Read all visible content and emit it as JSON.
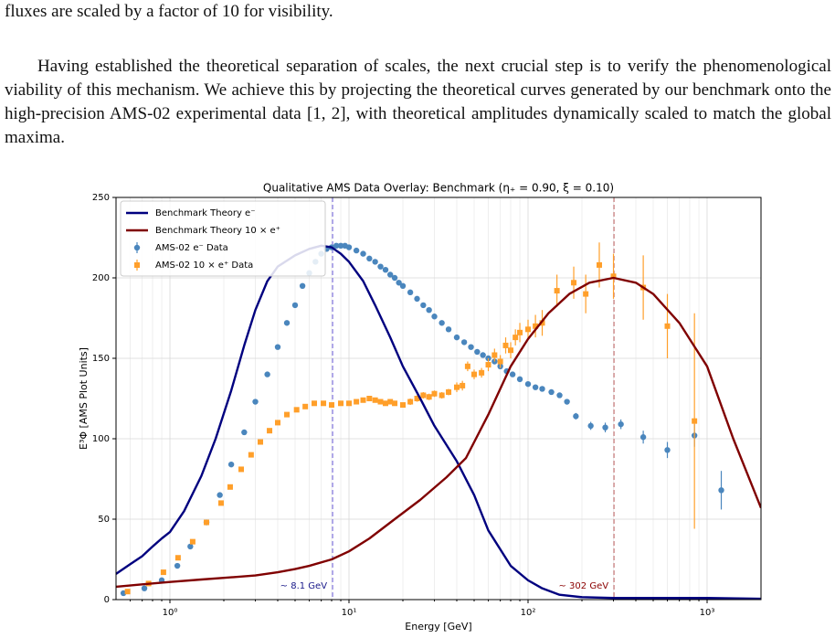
{
  "text": {
    "caption_tail": "fluxes are scaled by a factor of 10 for visibility.",
    "paragraph": "Having established the theoretical separation of scales, the next crucial step is to verify the phenomenological viability of this mechanism. We achieve this by projecting the theoretical curves generated by our benchmark onto the high-precision AMS-02 experimental data [1, 2], with theoretical amplitudes dynamically scaled to match the global maxima."
  },
  "chart_data": {
    "type": "line",
    "title": "Qualitative AMS Data Overlay: Benchmark (η₊ = 0.90, ξ = 0.10)",
    "xlabel": "Energy [GeV]",
    "ylabel": "E³Φ  [AMS Plot Units]",
    "xscale": "log",
    "xlim": [
      0.5,
      2000
    ],
    "ylim": [
      0,
      250
    ],
    "xticks": [
      {
        "value": 1,
        "label": "10⁰"
      },
      {
        "value": 10,
        "label": "10¹"
      },
      {
        "value": 100,
        "label": "10²"
      },
      {
        "value": 1000,
        "label": "10³"
      }
    ],
    "xminorticks": [
      0.6,
      0.7,
      0.8,
      0.9,
      2,
      3,
      4,
      5,
      6,
      7,
      8,
      9,
      20,
      30,
      40,
      50,
      60,
      70,
      80,
      90,
      200,
      300,
      400,
      500,
      600,
      700,
      800,
      900
    ],
    "yticks": [
      0,
      50,
      100,
      150,
      200,
      250
    ],
    "grid": true,
    "legend": "upper-left",
    "series": [
      {
        "name": "Benchmark Theory e⁻",
        "kind": "line",
        "color": "#00007f",
        "x": [
          0.5,
          0.6,
          0.7,
          0.8,
          0.9,
          1,
          1.2,
          1.5,
          1.8,
          2.2,
          2.6,
          3,
          3.5,
          4,
          5,
          6,
          7,
          8,
          9,
          10,
          12,
          14,
          17,
          20,
          25,
          30,
          40,
          50,
          60,
          80,
          100,
          120,
          150,
          200,
          300,
          500,
          1000,
          2000
        ],
        "values": [
          16,
          22,
          27,
          33,
          38,
          42,
          55,
          77,
          100,
          130,
          158,
          180,
          198,
          207,
          214,
          218,
          220,
          219,
          215,
          210,
          198,
          183,
          163,
          145,
          125,
          108,
          86,
          65,
          43,
          21,
          12,
          7,
          3,
          1.5,
          1,
          1,
          1,
          0.5
        ]
      },
      {
        "name": "Benchmark Theory 10 × e⁺",
        "kind": "line",
        "color": "#800000",
        "x": [
          0.5,
          0.7,
          1,
          1.5,
          2,
          3,
          4,
          5,
          6,
          8,
          10,
          13,
          18,
          25,
          35,
          45,
          60,
          80,
          100,
          130,
          170,
          220,
          300,
          400,
          500,
          700,
          1000,
          1400,
          2000
        ],
        "values": [
          8,
          9.5,
          11,
          12.5,
          13.5,
          15,
          17,
          19,
          21,
          25,
          30,
          38,
          50,
          62,
          76,
          88,
          115,
          145,
          162,
          178,
          190,
          197,
          200,
          197,
          190,
          172,
          145,
          100,
          57
        ]
      },
      {
        "name": "AMS-02 e⁻ Data",
        "kind": "errorbar",
        "marker": "circle",
        "color": "#4a86bd",
        "x": [
          0.55,
          0.72,
          0.9,
          1.1,
          1.3,
          1.6,
          1.9,
          2.2,
          2.6,
          3.0,
          3.5,
          4.0,
          4.5,
          5.0,
          5.5,
          6.0,
          6.5,
          7.0,
          7.5,
          8.0,
          8.5,
          9.0,
          9.5,
          10,
          11,
          12,
          13,
          14,
          15,
          16,
          17,
          18,
          19,
          20,
          22,
          24,
          26,
          28,
          30,
          33,
          36,
          40,
          44,
          48,
          52,
          56,
          60,
          65,
          70,
          76,
          82,
          90,
          100,
          110,
          120,
          135,
          150,
          165,
          185,
          224,
          270,
          330,
          440,
          600,
          850,
          1200
        ],
        "values": [
          4,
          7,
          12,
          21,
          33,
          48,
          65,
          84,
          104,
          123,
          140,
          157,
          172,
          183,
          195,
          203,
          210,
          215,
          218,
          219,
          220,
          220,
          220,
          219,
          217,
          215,
          212,
          210,
          207,
          205,
          202,
          200,
          197,
          195,
          191,
          187,
          183,
          180,
          176,
          172,
          168,
          163,
          160,
          157,
          154,
          152,
          150,
          148,
          145,
          142,
          140,
          137,
          134,
          132,
          131,
          129,
          127,
          123,
          114,
          108,
          107,
          109,
          101,
          93,
          102,
          68
        ],
        "errors": [
          1,
          1,
          1,
          1,
          1,
          1,
          1,
          1,
          1,
          1,
          1,
          1,
          1,
          1,
          1,
          1,
          1,
          1,
          1,
          1,
          1,
          1,
          1,
          1,
          1,
          1,
          1,
          1,
          1,
          1,
          1,
          1,
          1,
          1,
          1,
          1,
          1,
          1,
          1,
          1,
          1,
          1,
          1,
          1,
          1,
          1,
          1,
          1,
          1,
          1,
          1,
          1,
          1,
          1,
          1,
          1,
          1.5,
          1.5,
          2,
          2.5,
          3,
          3,
          4,
          5,
          7,
          12
        ]
      },
      {
        "name": "AMS-02 10 × e⁺ Data",
        "kind": "errorbar",
        "marker": "square",
        "color": "#ff9f2a",
        "x": [
          0.58,
          0.76,
          0.92,
          1.11,
          1.34,
          1.6,
          1.93,
          2.17,
          2.5,
          2.84,
          3.2,
          3.6,
          4.0,
          4.5,
          5.1,
          5.7,
          6.4,
          7.2,
          8,
          9,
          10,
          11,
          12,
          13,
          14,
          15,
          16,
          17,
          18,
          20,
          22,
          24,
          26,
          28,
          30,
          33,
          36,
          40,
          43,
          46,
          50,
          55,
          60,
          65,
          70,
          75,
          80,
          85,
          90,
          100,
          110,
          120,
          145,
          180,
          210,
          250,
          300,
          440,
          600,
          850
        ],
        "values": [
          5,
          10,
          17,
          26,
          36,
          48,
          60,
          70,
          81,
          90,
          98,
          105,
          110,
          115,
          118,
          120,
          122,
          122,
          121,
          122,
          122,
          123,
          124,
          125,
          124,
          123,
          122,
          123,
          122,
          121,
          123,
          125,
          127,
          126,
          128,
          127,
          129,
          132,
          133,
          145,
          140,
          141,
          146,
          152,
          148,
          158,
          155,
          163,
          166,
          168,
          170,
          172,
          192,
          197,
          190,
          208,
          201,
          194,
          170,
          111
        ],
        "errors": [
          1,
          1,
          1,
          1,
          1,
          1,
          1,
          1,
          1,
          1,
          1,
          1,
          1,
          1,
          1,
          1,
          1,
          1,
          1,
          1,
          1,
          1,
          1,
          1,
          1,
          1,
          1,
          1,
          1,
          1,
          2,
          2,
          2,
          2,
          2,
          2,
          2,
          3,
          3,
          3,
          3,
          3,
          4,
          4,
          4,
          5,
          5,
          5,
          6,
          6,
          7,
          8,
          10,
          10,
          12,
          14,
          14,
          20,
          20,
          67
        ]
      }
    ],
    "vlines": [
      {
        "value": 8.1,
        "label": "~ 8.1 GeV",
        "color": "#8a7fe0",
        "text_color": "#1a1a8a"
      },
      {
        "value": 302,
        "label": "~ 302 GeV",
        "color": "#c98080",
        "text_color": "#8b0000"
      }
    ]
  }
}
